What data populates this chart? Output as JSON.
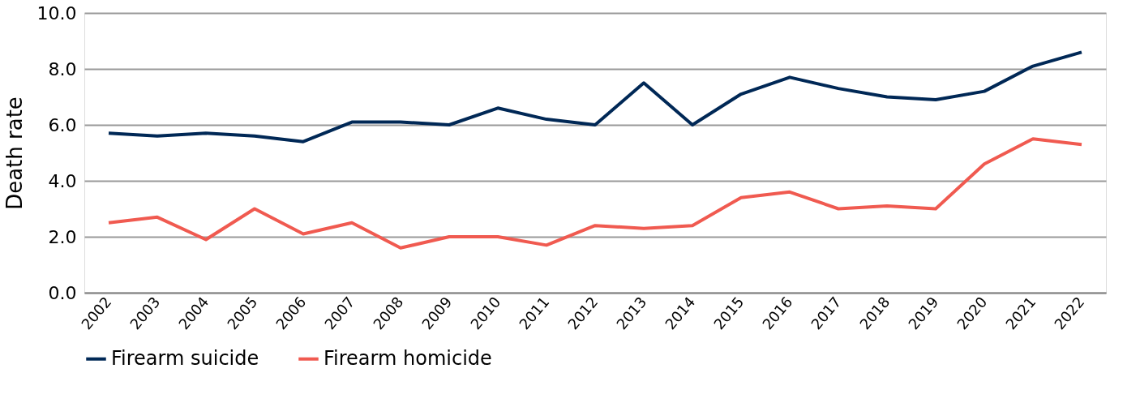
{
  "chart_data": {
    "type": "line",
    "ylabel": "Death rate",
    "categories": [
      "2002",
      "2003",
      "2004",
      "2005",
      "2006",
      "2007",
      "2008",
      "2009",
      "2010",
      "2011",
      "2012",
      "2013",
      "2014",
      "2015",
      "2016",
      "2017",
      "2018",
      "2019",
      "2020",
      "2021",
      "2022"
    ],
    "series": [
      {
        "name": "Firearm suicide",
        "color": "#002856",
        "values": [
          5.7,
          5.6,
          5.7,
          5.6,
          5.4,
          6.1,
          6.1,
          6.0,
          6.6,
          6.2,
          6.0,
          7.5,
          6.0,
          7.1,
          7.7,
          7.3,
          7.0,
          6.9,
          7.2,
          8.1,
          8.6
        ]
      },
      {
        "name": "Firearm homicide",
        "color": "#f05a50",
        "values": [
          2.5,
          2.7,
          1.9,
          3.0,
          2.1,
          2.5,
          1.6,
          2.0,
          2.0,
          1.7,
          2.4,
          2.3,
          2.4,
          3.4,
          3.6,
          3.0,
          3.1,
          3.0,
          4.6,
          5.5,
          5.3
        ]
      }
    ],
    "ylim": [
      0,
      10
    ],
    "yticks": [
      {
        "value": 0,
        "label": "0.0"
      },
      {
        "value": 2,
        "label": "2.0"
      },
      {
        "value": 4,
        "label": "4.0"
      },
      {
        "value": 6,
        "label": "6.0"
      },
      {
        "value": 8,
        "label": "8.0"
      },
      {
        "value": 10,
        "label": "10.0"
      }
    ],
    "grid": "y",
    "legend": "bottom",
    "marker": "none",
    "line_style": "solid"
  }
}
